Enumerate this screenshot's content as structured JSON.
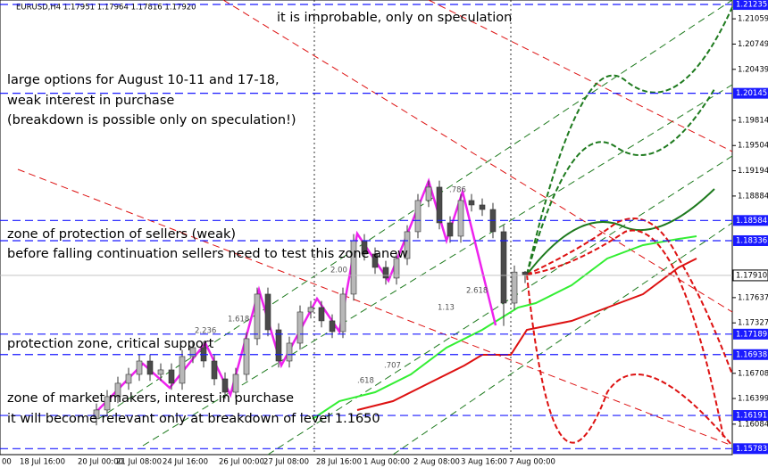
{
  "chart_data": {
    "type": "candlestick",
    "header": "EURUSD,H4  1.17951 1.17964 1.17816 1.17920",
    "ylim": [
      1.1571,
      1.2129
    ],
    "yticks": [
      1.21059,
      1.20749,
      1.20439,
      1.19814,
      1.19504,
      1.19194,
      1.18884,
      1.17637,
      1.17327,
      1.16708,
      1.16399,
      1.16084
    ],
    "levels": [
      1.21235,
      1.20145,
      1.18584,
      1.18336,
      1.17189,
      1.16938,
      1.16191,
      1.15783
    ],
    "level_color": "#1a1aff",
    "current_price": {
      "value": 1.1791,
      "label": "1.17910"
    },
    "x_labels": [
      "00",
      "18 Jul 16:00",
      "20 Jul 00:00",
      "21 Jul 08:00",
      "24 Jul 16:00",
      "26 Jul 00:00",
      "27 Jul 08:00",
      "28 Jul 16:00",
      "1 Aug 00:00",
      "2 Aug 08:00",
      "3 Aug 16:00",
      "7 Aug 00:00"
    ],
    "candles": {
      "open": [
        1.1615,
        1.16258,
        1.16422,
        1.16586,
        1.16695,
        1.16859,
        1.16695,
        1.1675,
        1.16586,
        1.16914,
        1.17023,
        1.16859,
        1.1664,
        1.16476,
        1.16695,
        1.17133,
        1.1768,
        1.17242,
        1.16859,
        1.17078,
        1.17461,
        1.17516,
        1.17352,
        1.1722,
        1.1768,
        1.18336,
        1.18172,
        1.18008,
        1.17877,
        1.18117,
        1.18446,
        1.18829,
        1.18993,
        1.18555,
        1.18391,
        1.18829,
        1.18774,
        1.18719,
        1.18446,
        1.1757,
        1.17951
      ],
      "high": [
        1.16338,
        1.16502,
        1.16666,
        1.16775,
        1.16939,
        1.16939,
        1.1683,
        1.1683,
        1.16994,
        1.17103,
        1.17103,
        1.16939,
        1.1672,
        1.16775,
        1.17213,
        1.1776,
        1.1776,
        1.17322,
        1.17158,
        1.17541,
        1.17596,
        1.17596,
        1.17432,
        1.1776,
        1.18416,
        1.18416,
        1.18252,
        1.18088,
        1.18197,
        1.18526,
        1.18909,
        1.19073,
        1.19073,
        1.18635,
        1.18909,
        1.18909,
        1.18854,
        1.18799,
        1.18526,
        1.18031,
        1.17964
      ],
      "low": [
        1.1607,
        1.16178,
        1.16342,
        1.16506,
        1.16615,
        1.16615,
        1.16615,
        1.16506,
        1.16506,
        1.16834,
        1.16779,
        1.1656,
        1.16396,
        1.16396,
        1.16615,
        1.17053,
        1.17162,
        1.16779,
        1.16779,
        1.16998,
        1.17381,
        1.17272,
        1.1714,
        1.1714,
        1.176,
        1.18092,
        1.17928,
        1.17797,
        1.17797,
        1.18037,
        1.18366,
        1.18749,
        1.18475,
        1.18311,
        1.18311,
        1.18694,
        1.18639,
        1.18366,
        1.1729,
        1.1749,
        1.17816
      ],
      "close": [
        1.16258,
        1.16422,
        1.16586,
        1.16695,
        1.16859,
        1.16695,
        1.1675,
        1.16586,
        1.16914,
        1.17023,
        1.16859,
        1.1664,
        1.16476,
        1.16695,
        1.17133,
        1.1768,
        1.17242,
        1.16859,
        1.17078,
        1.17461,
        1.17516,
        1.17352,
        1.1722,
        1.1768,
        1.18336,
        1.18172,
        1.18008,
        1.17877,
        1.18117,
        1.18446,
        1.18829,
        1.18993,
        1.18555,
        1.18391,
        1.18829,
        1.18774,
        1.18719,
        1.18446,
        1.1757,
        1.17951,
        1.1792
      ]
    },
    "bull_color": "#b8b8b8",
    "bear_color": "#4a4a4a",
    "fib_labels": [
      ".786",
      "2.618",
      "1.618",
      "2.236",
      "2.00",
      ".618",
      ".707",
      "1.13"
    ],
    "annotations": [
      "it is improbable, only on speculation",
      "large options for August 10-11 and 17-18,",
      "weak interest in purchase",
      "(breakdown is possible only on speculation!)",
      "zone of protection of sellers (weak)",
      "before falling continuation sellers need to test this zone anew",
      "protection zone, critical support",
      "zone of market makers, interest in purchase",
      "it will become relevant only at breakdown of level 1.1650"
    ]
  }
}
